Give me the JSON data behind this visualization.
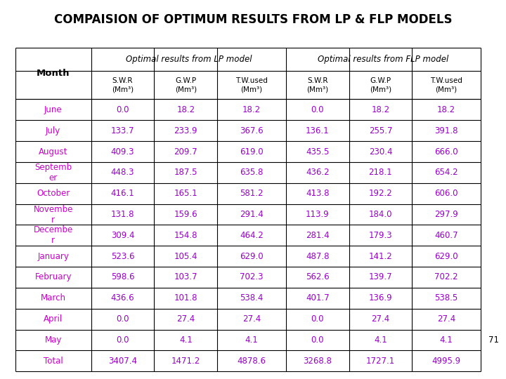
{
  "title": "COMPAISION OF OPTIMUM RESULTS FROM LP & FLP MODELS",
  "months": [
    "June",
    "July",
    "August",
    "Septemb\ner",
    "October",
    "Novembe\nr",
    "Decembe\nr",
    "January",
    "February",
    "March",
    "April",
    "May",
    "Total"
  ],
  "lp_swr": [
    0.0,
    133.7,
    409.3,
    448.3,
    416.1,
    131.8,
    309.4,
    523.6,
    598.6,
    436.6,
    0.0,
    0.0,
    3407.4
  ],
  "lp_gwp": [
    18.2,
    233.9,
    209.7,
    187.5,
    165.1,
    159.6,
    154.8,
    105.4,
    103.7,
    101.8,
    27.4,
    4.1,
    1471.2
  ],
  "lp_tw": [
    18.2,
    367.6,
    619.0,
    635.8,
    581.2,
    291.4,
    464.2,
    629.0,
    702.3,
    538.4,
    27.4,
    4.1,
    4878.6
  ],
  "flp_swr": [
    0.0,
    136.1,
    435.5,
    436.2,
    413.8,
    113.9,
    281.4,
    487.8,
    562.6,
    401.7,
    0.0,
    0.0,
    3268.8
  ],
  "flp_gwp": [
    18.2,
    255.7,
    230.4,
    218.1,
    192.2,
    184.0,
    179.3,
    141.2,
    139.7,
    136.9,
    27.4,
    4.1,
    1727.1
  ],
  "flp_tw": [
    18.2,
    391.8,
    666.0,
    654.2,
    606.0,
    297.9,
    460.7,
    629.0,
    702.2,
    538.5,
    27.4,
    4.1,
    4995.9
  ],
  "month_color": "#CC00CC",
  "data_color": "#9900CC",
  "bg_color": "#FFFFFF",
  "title_color": "#000000",
  "page_number": "71",
  "lp_header": "Optimal results from LP model",
  "flp_header": "Optimal results from FLP model",
  "sub_headers": [
    "S.W.R\n(Mm³)",
    "G.W.P\n(Mm³)",
    "T.W.used\n(Mm³)",
    "S.W.R\n(Mm³)",
    "G.W.P\n(Mm³)",
    "T.W.used\n(Mm³)"
  ]
}
